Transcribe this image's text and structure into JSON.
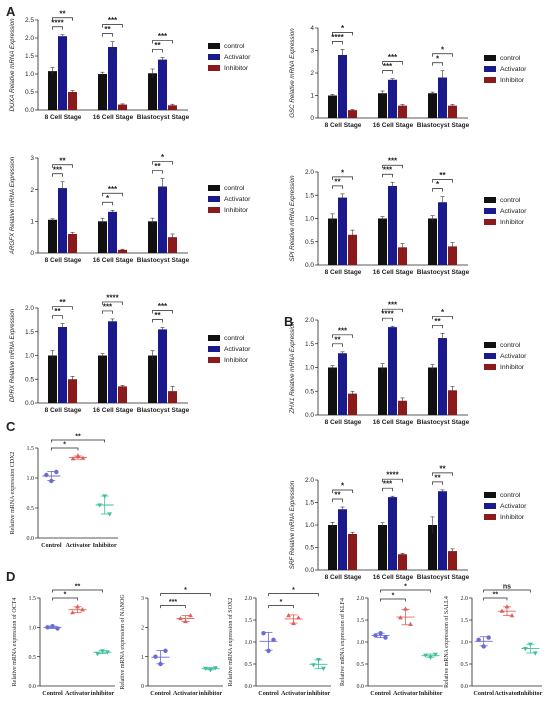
{
  "panel_letters": [
    "A",
    "B",
    "C",
    "D"
  ],
  "groups": [
    "control",
    "Activator",
    "Inhibitor"
  ],
  "stages": [
    "8 Cell Stage",
    "16 Cell Stage",
    "Blastocyst Stage"
  ],
  "colors": {
    "control": "#111111",
    "activator": "#1a1a8c",
    "inhibitor": "#8b1a1a",
    "scatter_control": "#6b6bd6",
    "scatter_activator": "#e0605a",
    "scatter_inhibitor": "#3fbf9f"
  },
  "chart_data": [
    {
      "type": "bar",
      "panel": "A",
      "ylabel": "DUXA Relative mRNA Expression",
      "ylim": [
        0,
        2.5
      ],
      "yticks": [
        "0.0",
        "0.5",
        "1.0",
        "1.5",
        "2.0",
        "2.5"
      ],
      "categories": [
        "8 Cell Stage",
        "16 Cell Stage",
        "Blastocyst Stage"
      ],
      "series": [
        {
          "name": "control",
          "values": [
            1.08,
            1.0,
            1.02
          ],
          "errors": [
            0.1,
            0.05,
            0.12
          ]
        },
        {
          "name": "Activator",
          "values": [
            2.05,
            1.75,
            1.4
          ],
          "errors": [
            0.04,
            0.15,
            0.06
          ]
        },
        {
          "name": "Inhibitor",
          "values": [
            0.5,
            0.15,
            0.13
          ],
          "errors": [
            0.04,
            0.02,
            0.03
          ]
        }
      ],
      "significance": [
        [
          "**",
          "****"
        ],
        [
          "***",
          "**"
        ],
        [
          "***",
          "**"
        ]
      ]
    },
    {
      "type": "bar",
      "panel": "A",
      "ylabel": "GSC Relative mRNA Expression",
      "ylim": [
        0,
        4
      ],
      "yticks": [
        "0",
        "1",
        "2",
        "3",
        "4"
      ],
      "categories": [
        "8 Cell Stage",
        "16 Cell Stage",
        "Blastocyst Stage"
      ],
      "series": [
        {
          "name": "control",
          "values": [
            1.0,
            1.1,
            1.1
          ],
          "errors": [
            0.05,
            0.1,
            0.05
          ]
        },
        {
          "name": "Activator",
          "values": [
            2.8,
            1.7,
            1.8
          ],
          "errors": [
            0.25,
            0.05,
            0.3
          ]
        },
        {
          "name": "Inhibitor",
          "values": [
            0.35,
            0.55,
            0.55
          ],
          "errors": [
            0.03,
            0.05,
            0.05
          ]
        }
      ],
      "significance": [
        [
          "*",
          "****"
        ],
        [
          "***",
          "***"
        ],
        [
          "*",
          "*"
        ]
      ]
    },
    {
      "type": "bar",
      "panel": "A",
      "ylabel": "ARGFX Relative mRNA Expression",
      "ylim": [
        0,
        3
      ],
      "yticks": [
        "0",
        "1",
        "2",
        "3"
      ],
      "categories": [
        "8 Cell Stage",
        "16 Cell Stage",
        "Blastocyst Stage"
      ],
      "series": [
        {
          "name": "control",
          "values": [
            1.05,
            1.0,
            1.0
          ],
          "errors": [
            0.03,
            0.1,
            0.1
          ]
        },
        {
          "name": "Activator",
          "values": [
            2.05,
            1.3,
            2.1
          ],
          "errors": [
            0.2,
            0.05,
            0.25
          ]
        },
        {
          "name": "Inhibitor",
          "values": [
            0.6,
            0.1,
            0.5
          ],
          "errors": [
            0.05,
            0.02,
            0.1
          ]
        }
      ],
      "significance": [
        [
          "**",
          "***"
        ],
        [
          "***",
          "*"
        ],
        [
          "*",
          "**"
        ]
      ]
    },
    {
      "type": "bar",
      "panel": "A",
      "ylabel": "SPI Relative mRNA Expression",
      "ylim": [
        0,
        2.0
      ],
      "yticks": [
        "0.0",
        "0.5",
        "1.0",
        "1.5",
        "2.0"
      ],
      "categories": [
        "8 Cell Stage",
        "16 Cell Stage",
        "Blastocyst Stage"
      ],
      "series": [
        {
          "name": "control",
          "values": [
            1.0,
            1.0,
            1.0
          ],
          "errors": [
            0.1,
            0.04,
            0.06
          ]
        },
        {
          "name": "Activator",
          "values": [
            1.45,
            1.7,
            1.35
          ],
          "errors": [
            0.08,
            0.08,
            0.12
          ]
        },
        {
          "name": "Inhibitor",
          "values": [
            0.65,
            0.38,
            0.4
          ],
          "errors": [
            0.1,
            0.08,
            0.08
          ]
        }
      ],
      "significance": [
        [
          "*",
          "**"
        ],
        [
          "***",
          "***"
        ],
        [
          "**",
          "*"
        ]
      ]
    },
    {
      "type": "bar",
      "panel": "A",
      "ylabel": "DPRX Relative mRNA Expression",
      "ylim": [
        0,
        2.0
      ],
      "yticks": [
        "0.0",
        "0.5",
        "1.0",
        "1.5",
        "2.0"
      ],
      "categories": [
        "8 Cell Stage",
        "16 Cell Stage",
        "Blastocyst Stage"
      ],
      "series": [
        {
          "name": "control",
          "values": [
            1.0,
            1.0,
            1.0
          ],
          "errors": [
            0.1,
            0.04,
            0.1
          ]
        },
        {
          "name": "Activator",
          "values": [
            1.6,
            1.72,
            1.55
          ],
          "errors": [
            0.07,
            0.05,
            0.04
          ]
        },
        {
          "name": "Inhibitor",
          "values": [
            0.5,
            0.35,
            0.25
          ],
          "errors": [
            0.06,
            0.02,
            0.1
          ]
        }
      ],
      "significance": [
        [
          "**",
          "**"
        ],
        [
          "****",
          "***"
        ],
        [
          "***",
          "**"
        ]
      ]
    },
    {
      "type": "bar",
      "panel": "B",
      "ylabel": "ZHX1 Relative mRNA Expression",
      "ylim": [
        0,
        2.0
      ],
      "yticks": [
        "0.0",
        "0.5",
        "1.0",
        "1.5",
        "2.0"
      ],
      "categories": [
        "8 Cell Stage",
        "16 Cell Stage",
        "Blastocyst Stage"
      ],
      "series": [
        {
          "name": "control",
          "values": [
            1.0,
            1.0,
            1.0
          ],
          "errors": [
            0.04,
            0.08,
            0.06
          ]
        },
        {
          "name": "Activator",
          "values": [
            1.3,
            1.85,
            1.62
          ],
          "errors": [
            0.03,
            0.02,
            0.1
          ]
        },
        {
          "name": "Inhibitor",
          "values": [
            0.45,
            0.3,
            0.52
          ],
          "errors": [
            0.05,
            0.06,
            0.08
          ]
        }
      ],
      "significance": [
        [
          "***",
          "**"
        ],
        [
          "***",
          "****"
        ],
        [
          "*",
          "**"
        ]
      ]
    },
    {
      "type": "bar",
      "panel": "B",
      "ylabel": "SRF Relative mRNA Expression",
      "ylim": [
        0,
        2.0
      ],
      "yticks": [
        "0.0",
        "0.5",
        "1.0",
        "1.5",
        "2.0"
      ],
      "categories": [
        "8 Cell Stage",
        "16 Cell Stage",
        "Blastocyst Stage"
      ],
      "series": [
        {
          "name": "control",
          "values": [
            1.0,
            1.0,
            1.0
          ],
          "errors": [
            0.06,
            0.05,
            0.18
          ]
        },
        {
          "name": "Activator",
          "values": [
            1.35,
            1.62,
            1.75
          ],
          "errors": [
            0.05,
            0.02,
            0.03
          ]
        },
        {
          "name": "Inhibitor",
          "values": [
            0.8,
            0.35,
            0.42
          ],
          "errors": [
            0.04,
            0.02,
            0.05
          ]
        }
      ],
      "significance": [
        [
          "*",
          "**"
        ],
        [
          "****",
          "***"
        ],
        [
          "**",
          "**"
        ]
      ]
    },
    {
      "type": "scatter",
      "panel": "C",
      "ylabel": "Relative mRNA expression CDX2",
      "ylim": [
        0,
        1.5
      ],
      "yticks": [
        "0.0",
        "0.5",
        "1.0",
        "1.5"
      ],
      "categories": [
        "Control",
        "Activator",
        "Inhibitor"
      ],
      "points": [
        [
          1.05,
          0.95,
          1.1
        ],
        [
          1.32,
          1.37,
          1.33
        ],
        [
          0.55,
          0.7,
          0.4
        ]
      ],
      "significance": [
        "*",
        "**"
      ]
    },
    {
      "type": "scatter",
      "panel": "D",
      "ylabel": "Relative mRNA expression of OCT4",
      "ylim": [
        0,
        1.5
      ],
      "yticks": [
        "0.0",
        "0.5",
        "1.0",
        "1.5"
      ],
      "categories": [
        "Control",
        "Activator",
        "inhibitor"
      ],
      "points": [
        [
          1.0,
          1.02,
          0.98
        ],
        [
          1.25,
          1.35,
          1.3
        ],
        [
          0.55,
          0.6,
          0.58
        ]
      ],
      "significance": [
        "*",
        "**"
      ]
    },
    {
      "type": "scatter",
      "panel": "D",
      "ylabel": "Relative mRNA expression of NANOG",
      "ylim": [
        0,
        3
      ],
      "yticks": [
        "0",
        "1",
        "2",
        "3"
      ],
      "categories": [
        "Control",
        "Activator",
        "inhibitor"
      ],
      "points": [
        [
          1.0,
          0.75,
          1.2
        ],
        [
          2.3,
          2.2,
          2.4
        ],
        [
          0.6,
          0.55,
          0.62
        ]
      ],
      "significance": [
        "***",
        "*"
      ]
    },
    {
      "type": "scatter",
      "panel": "D",
      "ylabel": "Relative mRNA expression of SOX2",
      "ylim": [
        0,
        2.0
      ],
      "yticks": [
        "0.0",
        "0.5",
        "1.0",
        "1.5",
        "2.0"
      ],
      "categories": [
        "Control",
        "Activator",
        "inhibitor"
      ],
      "points": [
        [
          1.2,
          0.8,
          1.05
        ],
        [
          1.6,
          1.42,
          1.55
        ],
        [
          0.48,
          0.6,
          0.4
        ]
      ],
      "significance": [
        "*",
        "*"
      ]
    },
    {
      "type": "scatter",
      "panel": "D",
      "ylabel": "Relative mRNA expression of KLF4",
      "ylim": [
        0,
        2.0
      ],
      "yticks": [
        "0.0",
        "0.5",
        "1.0",
        "1.5",
        "2.0"
      ],
      "categories": [
        "Control",
        "Activator",
        "Inhibitor"
      ],
      "points": [
        [
          1.15,
          1.2,
          1.1
        ],
        [
          1.55,
          1.75,
          1.4
        ],
        [
          0.7,
          0.65,
          0.72
        ]
      ],
      "significance": [
        "*",
        "*"
      ]
    },
    {
      "type": "scatter",
      "panel": "D",
      "ylabel": "Relative mRNA expression of SALL4",
      "ylim": [
        0,
        2.0
      ],
      "yticks": [
        "0.0",
        "0.5",
        "1.0",
        "1.5",
        "2.0"
      ],
      "categories": [
        "Control",
        "Activator",
        "Inhibitor"
      ],
      "points": [
        [
          1.05,
          0.9,
          1.1
        ],
        [
          1.7,
          1.8,
          1.6
        ],
        [
          0.85,
          0.95,
          0.75
        ]
      ],
      "significance": [
        "**",
        "ns"
      ]
    }
  ]
}
